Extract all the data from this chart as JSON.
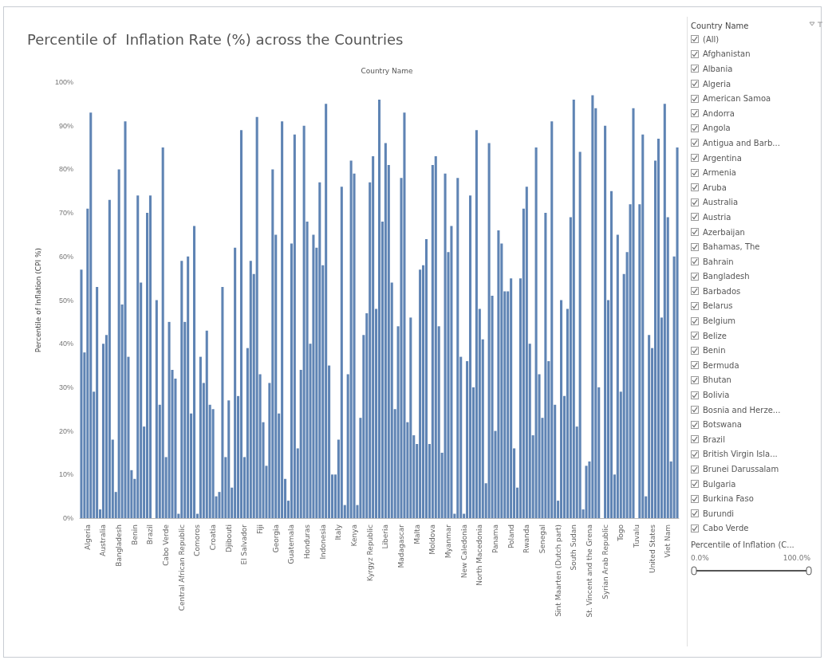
{
  "chart_data": [
    {
      "type": "bar",
      "title": "Percentile of  Inflation Rate (%) across the Countries",
      "xlabel": "Country Name",
      "ylabel": "Percentile of Inflation (CPI %)",
      "color": "#5f84b4",
      "categories": [
        null,
        null,
        "Algeria",
        null,
        null,
        null,
        null,
        "Australia",
        null,
        null,
        null,
        null,
        "Bangladesh",
        null,
        null,
        null,
        null,
        "Benin",
        null,
        null,
        null,
        null,
        "Brazil",
        null,
        null,
        null,
        null,
        "Cabo Verde",
        null,
        null,
        null,
        null,
        "Central African Republic",
        null,
        null,
        null,
        null,
        "Comoros",
        null,
        null,
        null,
        null,
        "Croatia",
        null,
        null,
        null,
        null,
        "Djibouti",
        null,
        null,
        null,
        null,
        "El Salvador",
        null,
        null,
        null,
        null,
        "Fiji",
        null,
        null,
        null,
        null,
        "Georgia",
        null,
        null,
        null,
        null,
        "Guatemala",
        null,
        null,
        null,
        null,
        "Honduras",
        null,
        null,
        null,
        null,
        "Indonesia",
        null,
        null,
        null,
        null,
        "Italy",
        null,
        null,
        null,
        null,
        "Kenya",
        null,
        null,
        null,
        null,
        "Kyrgyz Republic",
        null,
        null,
        null,
        null,
        "Liberia",
        null,
        null,
        null,
        null,
        "Madagascar",
        null,
        null,
        null,
        null,
        "Malta",
        null,
        null,
        null,
        null,
        "Moldova",
        null,
        null,
        null,
        null,
        "Myanmar",
        null,
        null,
        null,
        null,
        "New Caledonia",
        null,
        null,
        null,
        null,
        "North Macedonia",
        null,
        null,
        null,
        null,
        "Panama",
        null,
        null,
        null,
        null,
        "Poland",
        null,
        null,
        null,
        null,
        "Rwanda",
        null,
        null,
        null,
        null,
        "Senegal",
        null,
        null,
        null,
        null,
        "Sint Maarten (Dutch part)",
        null,
        null,
        null,
        null,
        "South Sudan",
        null,
        null,
        null,
        null,
        "St. Vincent and the Grena",
        null,
        null,
        null,
        null,
        "Syrian Arab Republic",
        null,
        null,
        null,
        null,
        "Togo",
        null,
        null,
        null,
        null,
        "Tuvalu",
        null,
        null,
        null,
        null,
        "United States",
        null,
        null,
        null,
        null,
        "Viet Nam",
        null,
        null,
        null
      ],
      "values": [
        57,
        38,
        71,
        93,
        29,
        53,
        2,
        40,
        42,
        73,
        18,
        6,
        80,
        49,
        91,
        37,
        11,
        9,
        74,
        54,
        21,
        70,
        74,
        0,
        50,
        26,
        85,
        14,
        45,
        34,
        32,
        1,
        59,
        45,
        60,
        24,
        67,
        1,
        37,
        31,
        43,
        26,
        25,
        5,
        6,
        53,
        14,
        27,
        7,
        62,
        28,
        89,
        14,
        39,
        59,
        56,
        92,
        33,
        22,
        12,
        31,
        80,
        65,
        24,
        91,
        9,
        4,
        63,
        88,
        16,
        34,
        90,
        68,
        40,
        65,
        62,
        77,
        58,
        95,
        35,
        10,
        10,
        18,
        76,
        3,
        33,
        82,
        79,
        3,
        23,
        42,
        47,
        77,
        83,
        48,
        96,
        68,
        86,
        81,
        54,
        25,
        44,
        78,
        93,
        22,
        46,
        19,
        17,
        57,
        58,
        64,
        17,
        81,
        83,
        44,
        15,
        79,
        61,
        67,
        1,
        78,
        37,
        1,
        36,
        74,
        30,
        89,
        48,
        41,
        8,
        86,
        51,
        20,
        66,
        63,
        52,
        52,
        55,
        16,
        7,
        55,
        71,
        76,
        40,
        19,
        85,
        33,
        23,
        70,
        36,
        91,
        26,
        4,
        50,
        28,
        48,
        69,
        96,
        21,
        84,
        2,
        12,
        13,
        97,
        94,
        30,
        0,
        90,
        50,
        75,
        10,
        65,
        29,
        56,
        61,
        72,
        94,
        0,
        72,
        88,
        5,
        42,
        39,
        82,
        87,
        46,
        95,
        69,
        13,
        60,
        85
      ],
      "ylim": [
        0,
        100
      ],
      "yticks": [
        {
          "value": 0,
          "label": "0%"
        },
        {
          "value": 10,
          "label": "10%"
        },
        {
          "value": 20,
          "label": "20%"
        },
        {
          "value": 30,
          "label": "30%"
        },
        {
          "value": 40,
          "label": "40%"
        },
        {
          "value": 50,
          "label": "50%"
        },
        {
          "value": 60,
          "label": "60%"
        },
        {
          "value": 70,
          "label": "70%"
        },
        {
          "value": 80,
          "label": "80%"
        },
        {
          "value": 90,
          "label": "90%"
        },
        {
          "value": 100,
          "label": "100%"
        }
      ]
    },
    {
      "type": "other",
      "title": "Country Name",
      "categories": [
        "(All)",
        "Afghanistan",
        "Albania",
        "Algeria",
        "American Samoa",
        "Andorra",
        "Angola",
        "Antigua and Barb...",
        "Argentina",
        "Armenia",
        "Aruba",
        "Australia",
        "Austria",
        "Azerbaijan",
        "Bahamas, The",
        "Bahrain",
        "Bangladesh",
        "Barbados",
        "Belarus",
        "Belgium",
        "Belize",
        "Benin",
        "Bermuda",
        "Bhutan",
        "Bolivia",
        "Bosnia and Herze...",
        "Botswana",
        "Brazil",
        "British Virgin Isla...",
        "Brunei Darussalam",
        "Bulgaria",
        "Burkina Faso",
        "Burundi",
        "Cabo Verde"
      ],
      "annotations": [
        "Percentile of Inflation (C...",
        "0.0%",
        "100.0%"
      ]
    }
  ]
}
